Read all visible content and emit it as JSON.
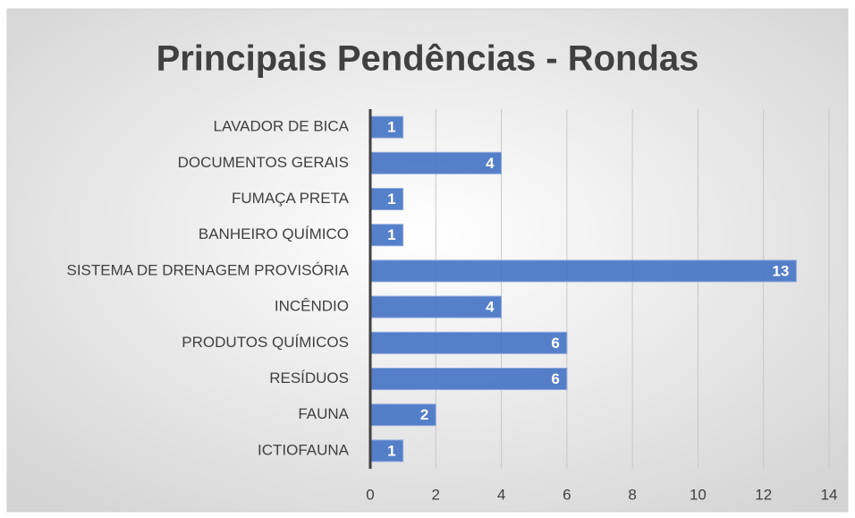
{
  "chart_data": {
    "type": "bar",
    "orientation": "horizontal",
    "title": "Principais Pendências - Rondas",
    "categories": [
      "LAVADOR DE BICA",
      "DOCUMENTOS GERAIS",
      "FUMAÇA PRETA",
      "BANHEIRO QUÍMICO",
      "SISTEMA DE DRENAGEM PROVISÓRIA",
      "INCÊNDIO",
      "PRODUTOS QUÍMICOS",
      "RESÍDUOS",
      "FAUNA",
      "ICTIOFAUNA"
    ],
    "values": [
      1,
      4,
      1,
      1,
      13,
      4,
      6,
      6,
      2,
      1
    ],
    "color": "#4472c4",
    "xlim": [
      0,
      14
    ],
    "xticks": [
      0,
      2,
      4,
      6,
      8,
      10,
      12,
      14
    ],
    "grid": true
  }
}
